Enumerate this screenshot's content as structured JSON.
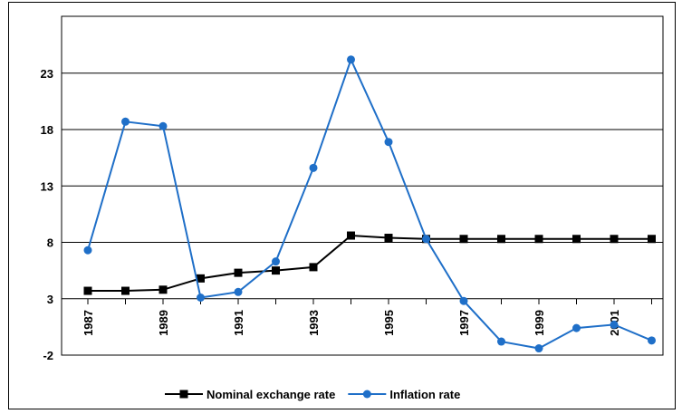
{
  "chart_data": {
    "type": "line",
    "title": "",
    "xlabel": "",
    "ylabel": "",
    "x": [
      1987,
      1988,
      1989,
      1990,
      1991,
      1992,
      1993,
      1994,
      1995,
      1996,
      1997,
      1998,
      1999,
      2000,
      2001,
      2002
    ],
    "x_tick_labels": [
      "1987",
      "1989",
      "1991",
      "1993",
      "1995",
      "1997",
      "1999",
      "2001"
    ],
    "y_tick_labels": [
      "-2",
      "3",
      "8",
      "13",
      "18",
      "23"
    ],
    "ylim": [
      -2,
      28
    ],
    "grid": "horizontal",
    "legend_position": "bottom",
    "series": [
      {
        "name": "Nominal exchange rate",
        "color": "#000000",
        "marker": "square",
        "values": [
          3.7,
          3.7,
          3.8,
          4.8,
          5.3,
          5.5,
          5.8,
          8.6,
          8.4,
          8.3,
          8.3,
          8.3,
          8.3,
          8.3,
          8.3,
          8.3
        ]
      },
      {
        "name": "Inflation rate",
        "color": "#1f6fc8",
        "marker": "circle",
        "values": [
          7.3,
          18.7,
          18.3,
          3.1,
          3.6,
          6.3,
          14.6,
          24.2,
          16.9,
          8.3,
          2.8,
          -0.8,
          -1.4,
          0.4,
          0.7,
          -0.7
        ]
      }
    ]
  }
}
